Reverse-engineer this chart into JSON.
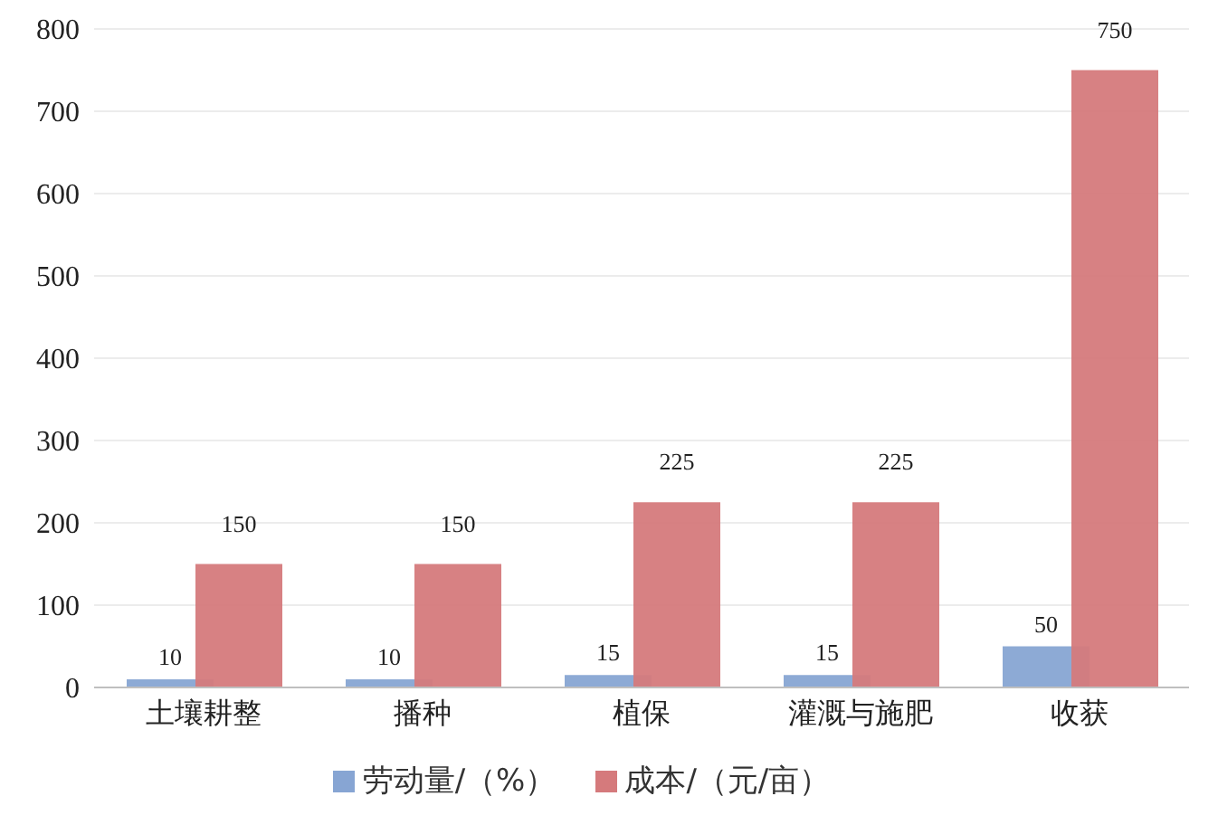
{
  "chart_data": {
    "type": "bar",
    "categories": [
      "土壤耕整",
      "播种",
      "植保",
      "灌溉与施肥",
      "收获"
    ],
    "series": [
      {
        "name": "劳动量/（%）",
        "color": "#87a5d3",
        "values": [
          10,
          10,
          15,
          15,
          50
        ]
      },
      {
        "name": "成本/（元/亩）",
        "color": "#d57a7c",
        "values": [
          150,
          150,
          225,
          225,
          750
        ]
      }
    ],
    "ylim": [
      0,
      800
    ],
    "yticks": [
      0,
      100,
      200,
      300,
      400,
      500,
      600,
      700,
      800
    ],
    "grid": "y",
    "legend": "bottom",
    "data_labels": true
  }
}
